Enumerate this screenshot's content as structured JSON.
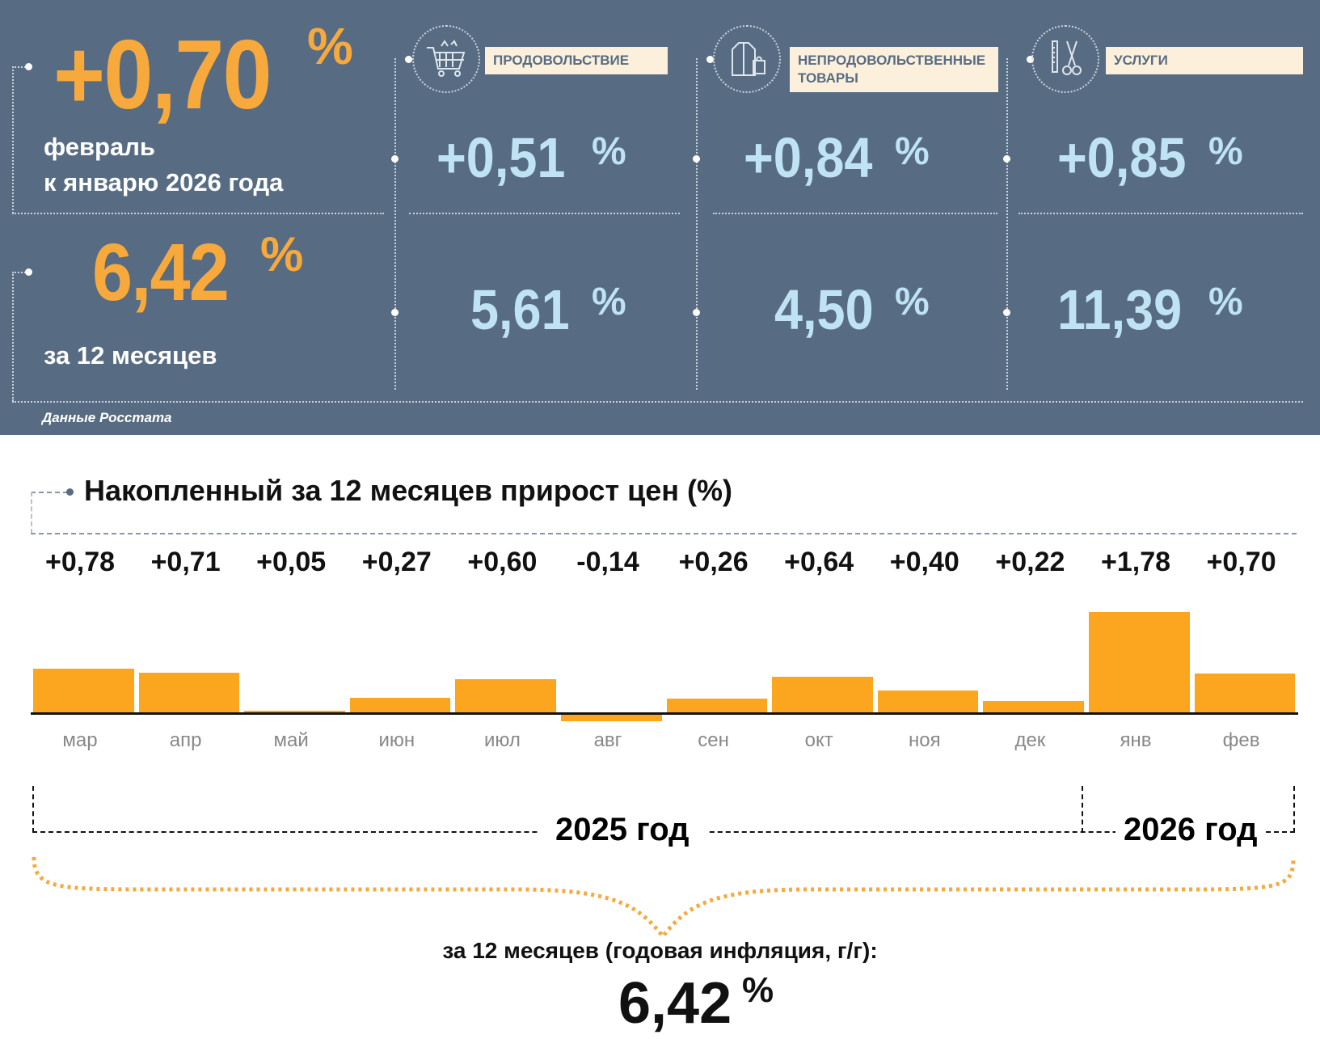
{
  "header": {
    "month_change": "+0,70",
    "month_label_1": "февраль",
    "month_label_2": "к январю 2026 года",
    "year_change": "6,42",
    "year_label": "за 12 месяцев",
    "percent": "%",
    "source": "Данные Росстата"
  },
  "categories": [
    {
      "name": "ПРОДОВОЛЬСТВИЕ",
      "icon": "shopping-cart-icon",
      "month": "+0,51",
      "year": "5,61"
    },
    {
      "name": "НЕПРОДОВОЛЬСТВЕННЫЕ ТОВАРЫ",
      "icon": "clothing-bag-icon",
      "month": "+0,84",
      "year": "4,50"
    },
    {
      "name": "УСЛУГИ",
      "icon": "scissors-comb-icon",
      "month": "+0,85",
      "year": "11,39"
    }
  ],
  "colors": {
    "panel": "#576c83",
    "accent": "#f8a93c",
    "bars": "#fca620",
    "value_blue": "#bfe3f3"
  },
  "chart_data": {
    "type": "bar",
    "title": "Накопленный за 12 месяцев прирост цен (%)",
    "categories": [
      "мар",
      "апр",
      "май",
      "июн",
      "июл",
      "авг",
      "сен",
      "окт",
      "ноя",
      "дек",
      "янв",
      "фев"
    ],
    "labels": [
      "+0,78",
      "+0,71",
      "+0,05",
      "+0,27",
      "+0,60",
      "-0,14",
      "+0,26",
      "+0,64",
      "+0,40",
      "+0,22",
      "+1,78",
      "+0,70"
    ],
    "values": [
      0.78,
      0.71,
      0.05,
      0.27,
      0.6,
      -0.14,
      0.26,
      0.64,
      0.4,
      0.22,
      1.78,
      0.7
    ],
    "year_groups": [
      "2025 год",
      "2026 год"
    ],
    "summary_label": "за 12 месяцев (годовая инфляция, г/г):",
    "summary_value": "6,42",
    "summary_unit": "%"
  }
}
